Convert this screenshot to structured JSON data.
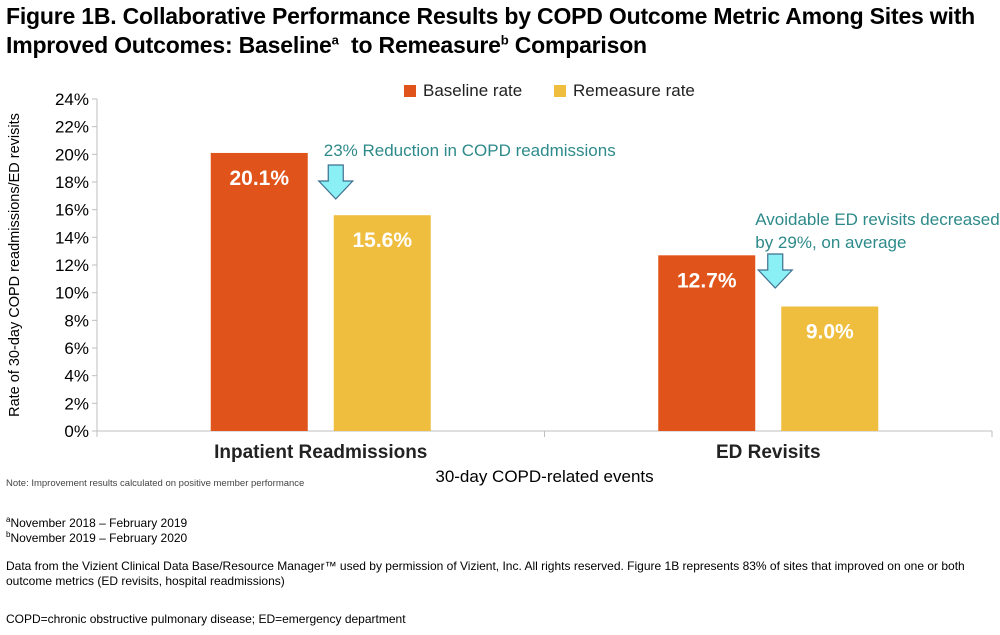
{
  "title": {
    "line1": "Figure 1B. Collaborative Performance Results by COPD Outcome Metric Among Sites with",
    "line2a": "Improved Outcomes: Baseline",
    "sup_a": "a",
    "line2b": "  to Remeasure",
    "sup_b": "b",
    "line2c": " Comparison"
  },
  "chart_data": {
    "type": "bar",
    "categories": [
      "Inpatient Readmissions",
      "ED Revisits"
    ],
    "series": [
      {
        "name": "Baseline rate",
        "values": [
          20.1,
          12.7
        ],
        "labels": [
          "20.1%",
          "12.7%"
        ],
        "color": "#e0531a"
      },
      {
        "name": "Remeasure rate",
        "values": [
          15.6,
          9.0
        ],
        "labels": [
          "15.6%",
          "9.0%"
        ],
        "color": "#efbe3f"
      }
    ],
    "ylim": [
      0,
      24
    ],
    "yticks": [
      0,
      2,
      4,
      6,
      8,
      10,
      12,
      14,
      16,
      18,
      20,
      22,
      24
    ],
    "ytick_labels": [
      "0%",
      "2%",
      "4%",
      "6%",
      "8%",
      "10%",
      "12%",
      "14%",
      "16%",
      "18%",
      "20%",
      "22%",
      "24%"
    ],
    "ylabel": "Rate of 30-day COPD readmissions/ED revisits",
    "xlabel": "30-day COPD-related events",
    "legend_position": "top",
    "grid": false,
    "annotations": [
      {
        "lines": [
          "23% Reduction in COPD readmissions"
        ],
        "category": 0
      },
      {
        "lines": [
          "Avoidable ED revisits decreased",
          "by 29%, on average"
        ],
        "category": 1
      }
    ],
    "annotation_color": "#2e8a8a",
    "arrow_color": "#8af0f5"
  },
  "note": "Note:  Improvement  results calculated  on positive member  performance",
  "footnotes": {
    "a_mark": "a",
    "a_text": "November 2018 – February 2019",
    "b_mark": "b",
    "b_text": "November 2019 – February 2020",
    "data_source": "Data from the Vizient Clinical Data Base/Resource Manager™ used by permission of Vizient, Inc. All rights reserved. Figure 1B represents 83% of sites that improved on one or both outcome metrics (ED revisits, hospital readmissions)",
    "abbreviations": "COPD=chronic obstructive pulmonary disease; ED=emergency department"
  }
}
